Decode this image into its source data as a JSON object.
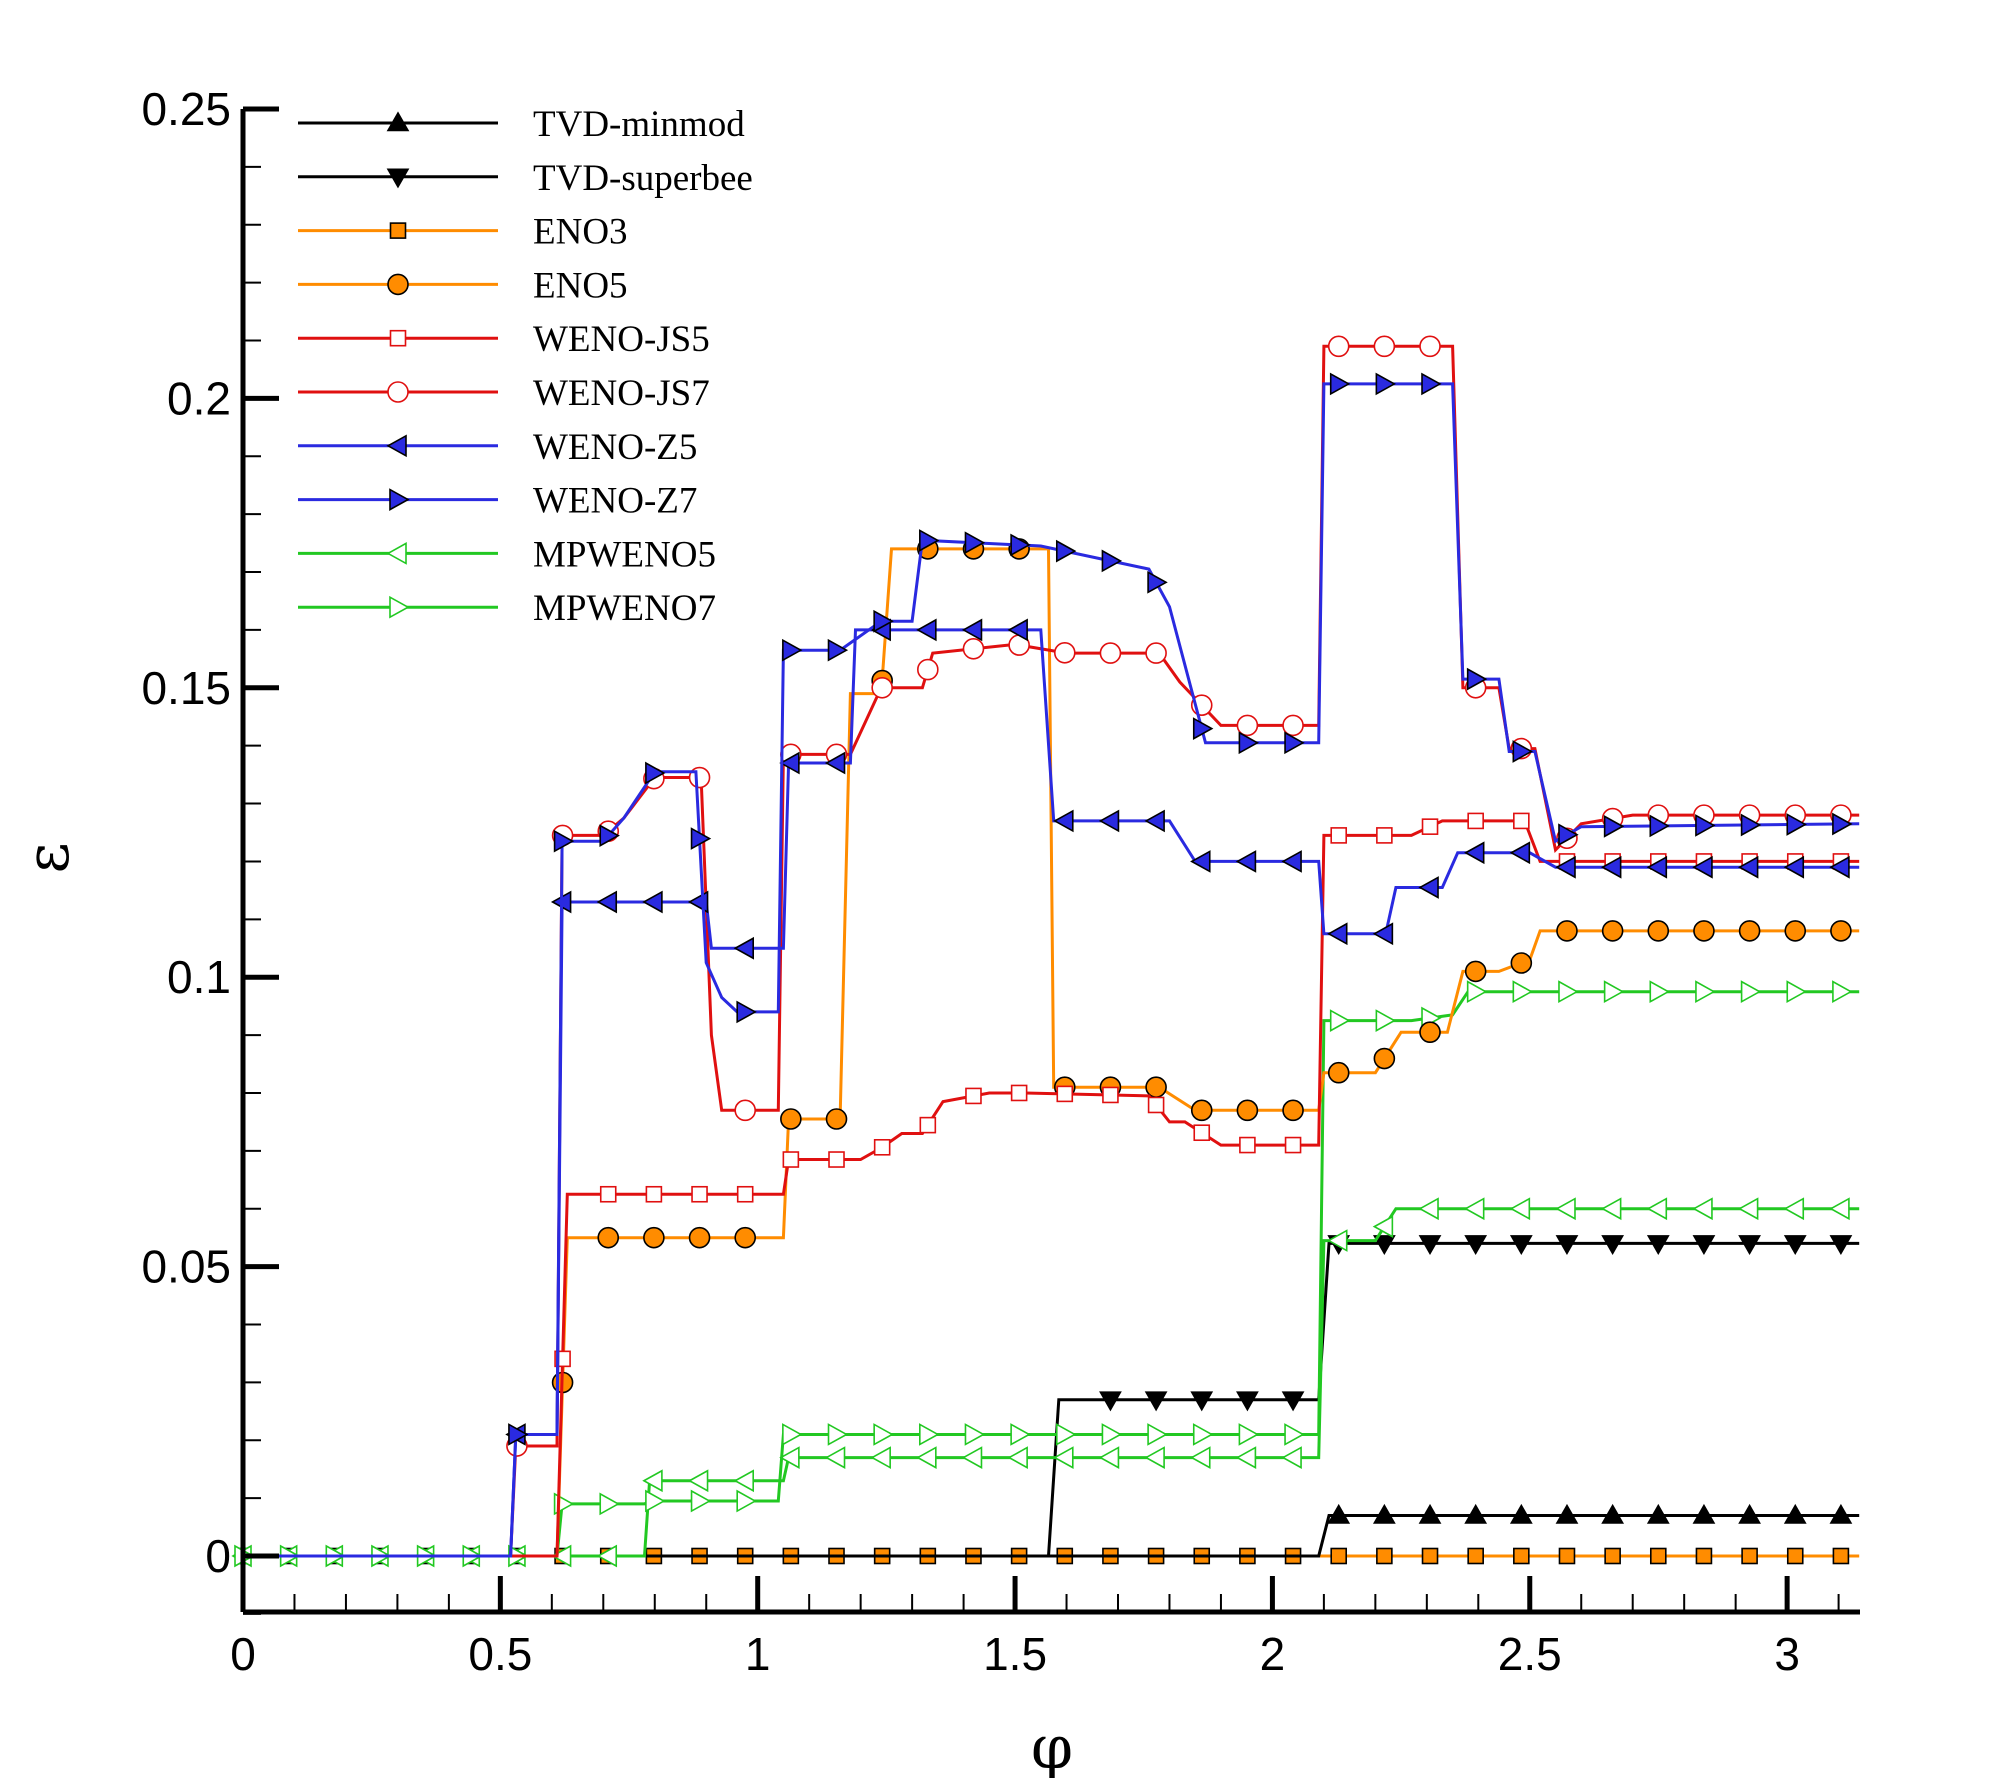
{
  "chart_data": {
    "type": "line",
    "title": "",
    "xlabel": "φ",
    "ylabel": "ε",
    "xlim": [
      0,
      3.14159
    ],
    "ylim": [
      -0.01,
      0.25
    ],
    "xticks": [
      0,
      0.5,
      1,
      1.5,
      2,
      2.5,
      3
    ],
    "xtick_labels": [
      "0",
      "0.5",
      "1",
      "1.5",
      "2",
      "2.5",
      "3"
    ],
    "yticks": [
      0,
      0.05,
      0.1,
      0.15,
      0.2,
      0.25
    ],
    "ytick_labels": [
      "0",
      "0.05",
      "0.1",
      "0.15",
      "0.2",
      "0.25"
    ],
    "legend_position": "top-left",
    "series": [
      {
        "name": "TVD-minmod",
        "color": "#000000",
        "marker": "triangle-up",
        "fill": "#000000",
        "x": [
          0,
          2.09,
          2.11,
          3.14
        ],
        "y": [
          0,
          0,
          0.007,
          0.007
        ]
      },
      {
        "name": "TVD-superbee",
        "color": "#000000",
        "marker": "triangle-down",
        "fill": "#000000",
        "x": [
          0,
          1.565,
          1.585,
          2.09,
          2.11,
          3.14
        ],
        "y": [
          0,
          0,
          0.027,
          0.027,
          0.054,
          0.054
        ]
      },
      {
        "name": "ENO3",
        "color": "#ff8c00",
        "marker": "square",
        "fill": "#ff8c00",
        "x": [
          0,
          3.14
        ],
        "y": [
          0,
          0
        ]
      },
      {
        "name": "ENO5",
        "color": "#ff8c00",
        "marker": "circle",
        "fill": "#ff8c00",
        "x": [
          0,
          0.61,
          0.63,
          1.05,
          1.06,
          1.16,
          1.18,
          1.24,
          1.26,
          1.565,
          1.575,
          1.78,
          1.85,
          2.09,
          2.1,
          2.2,
          2.25,
          2.34,
          2.37,
          2.44,
          2.5,
          2.52,
          3.14
        ],
        "y": [
          0,
          0,
          0.055,
          0.055,
          0.0755,
          0.0755,
          0.149,
          0.149,
          0.174,
          0.174,
          0.081,
          0.081,
          0.077,
          0.077,
          0.0835,
          0.0835,
          0.0905,
          0.0905,
          0.101,
          0.101,
          0.103,
          0.108,
          0.108
        ]
      },
      {
        "name": "WENO-JS5",
        "color": "#e01010",
        "marker": "square",
        "fill": "#ffffff",
        "x": [
          0,
          0.61,
          0.63,
          1.05,
          1.06,
          1.2,
          1.24,
          1.28,
          1.32,
          1.36,
          1.45,
          1.52,
          1.76,
          1.8,
          1.83,
          1.9,
          2.09,
          2.1,
          2.27,
          2.33,
          2.49,
          2.52,
          3.14
        ],
        "y": [
          0,
          0,
          0.0625,
          0.0625,
          0.0685,
          0.0685,
          0.0705,
          0.073,
          0.073,
          0.0785,
          0.08,
          0.08,
          0.0795,
          0.075,
          0.075,
          0.071,
          0.071,
          0.1245,
          0.1245,
          0.127,
          0.127,
          0.12,
          0.12
        ]
      },
      {
        "name": "WENO-JS7",
        "color": "#e01010",
        "marker": "circle",
        "fill": "#ffffff",
        "x": [
          0,
          0.52,
          0.53,
          0.61,
          0.62,
          0.7,
          0.74,
          0.8,
          0.89,
          0.91,
          0.93,
          1.04,
          1.05,
          1.18,
          1.24,
          1.32,
          1.34,
          1.5,
          1.6,
          1.78,
          1.82,
          1.9,
          2.09,
          2.1,
          2.35,
          2.37,
          2.44,
          2.46,
          2.51,
          2.55,
          2.6,
          2.7,
          3.14
        ],
        "y": [
          0,
          0,
          0.019,
          0.019,
          0.1245,
          0.1245,
          0.1275,
          0.1345,
          0.1345,
          0.09,
          0.077,
          0.077,
          0.1385,
          0.1385,
          0.15,
          0.15,
          0.156,
          0.1575,
          0.156,
          0.156,
          0.151,
          0.1435,
          0.1435,
          0.209,
          0.209,
          0.15,
          0.15,
          0.1395,
          0.1395,
          0.122,
          0.1265,
          0.128,
          0.128
        ]
      },
      {
        "name": "WENO-Z5",
        "color": "#2a2ae0",
        "marker": "triangle-left",
        "fill": "#2a2ae0",
        "x": [
          0,
          0.52,
          0.53,
          0.61,
          0.62,
          0.9,
          0.91,
          1.05,
          1.06,
          1.18,
          1.19,
          1.55,
          1.575,
          1.8,
          1.85,
          2.09,
          2.1,
          2.22,
          2.24,
          2.33,
          2.36,
          2.5,
          2.55,
          3.14
        ],
        "y": [
          0,
          0,
          0.021,
          0.021,
          0.113,
          0.113,
          0.105,
          0.105,
          0.137,
          0.137,
          0.16,
          0.16,
          0.127,
          0.127,
          0.12,
          0.12,
          0.1075,
          0.1075,
          0.1155,
          0.1155,
          0.1215,
          0.1215,
          0.119,
          0.119
        ]
      },
      {
        "name": "WENO-Z7",
        "color": "#2a2ae0",
        "marker": "triangle-right",
        "fill": "#2a2ae0",
        "x": [
          0,
          0.52,
          0.53,
          0.61,
          0.62,
          0.7,
          0.74,
          0.8,
          0.88,
          0.9,
          0.93,
          0.96,
          1.04,
          1.05,
          1.16,
          1.24,
          1.3,
          1.32,
          1.55,
          1.76,
          1.8,
          1.87,
          2.09,
          2.1,
          2.35,
          2.37,
          2.44,
          2.46,
          2.51,
          2.55,
          2.6,
          3.14
        ],
        "y": [
          0,
          0,
          0.021,
          0.021,
          0.1235,
          0.1235,
          0.1275,
          0.1355,
          0.1355,
          0.1025,
          0.0965,
          0.094,
          0.094,
          0.1565,
          0.1565,
          0.1615,
          0.1615,
          0.1755,
          0.1745,
          0.1705,
          0.164,
          0.1405,
          0.1405,
          0.2025,
          0.2025,
          0.1515,
          0.1515,
          0.139,
          0.139,
          0.1235,
          0.126,
          0.1265
        ]
      },
      {
        "name": "MPWENO5",
        "color": "#22c822",
        "marker": "triangle-left",
        "fill": "#ffffff",
        "x": [
          0,
          0.78,
          0.79,
          1.05,
          1.06,
          2.09,
          2.1,
          2.2,
          2.24,
          3.14
        ],
        "y": [
          0,
          0,
          0.013,
          0.013,
          0.017,
          0.017,
          0.0545,
          0.0545,
          0.06,
          0.06
        ]
      },
      {
        "name": "MPWENO7",
        "color": "#22c822",
        "marker": "triangle-right",
        "fill": "#ffffff",
        "x": [
          0,
          0.61,
          0.62,
          0.78,
          0.79,
          1.04,
          1.05,
          2.09,
          2.1,
          2.27,
          2.35,
          2.38,
          3.14
        ],
        "y": [
          0,
          0,
          0.009,
          0.009,
          0.0095,
          0.0095,
          0.021,
          0.021,
          0.0925,
          0.0925,
          0.0935,
          0.0975,
          0.0975
        ]
      }
    ]
  }
}
